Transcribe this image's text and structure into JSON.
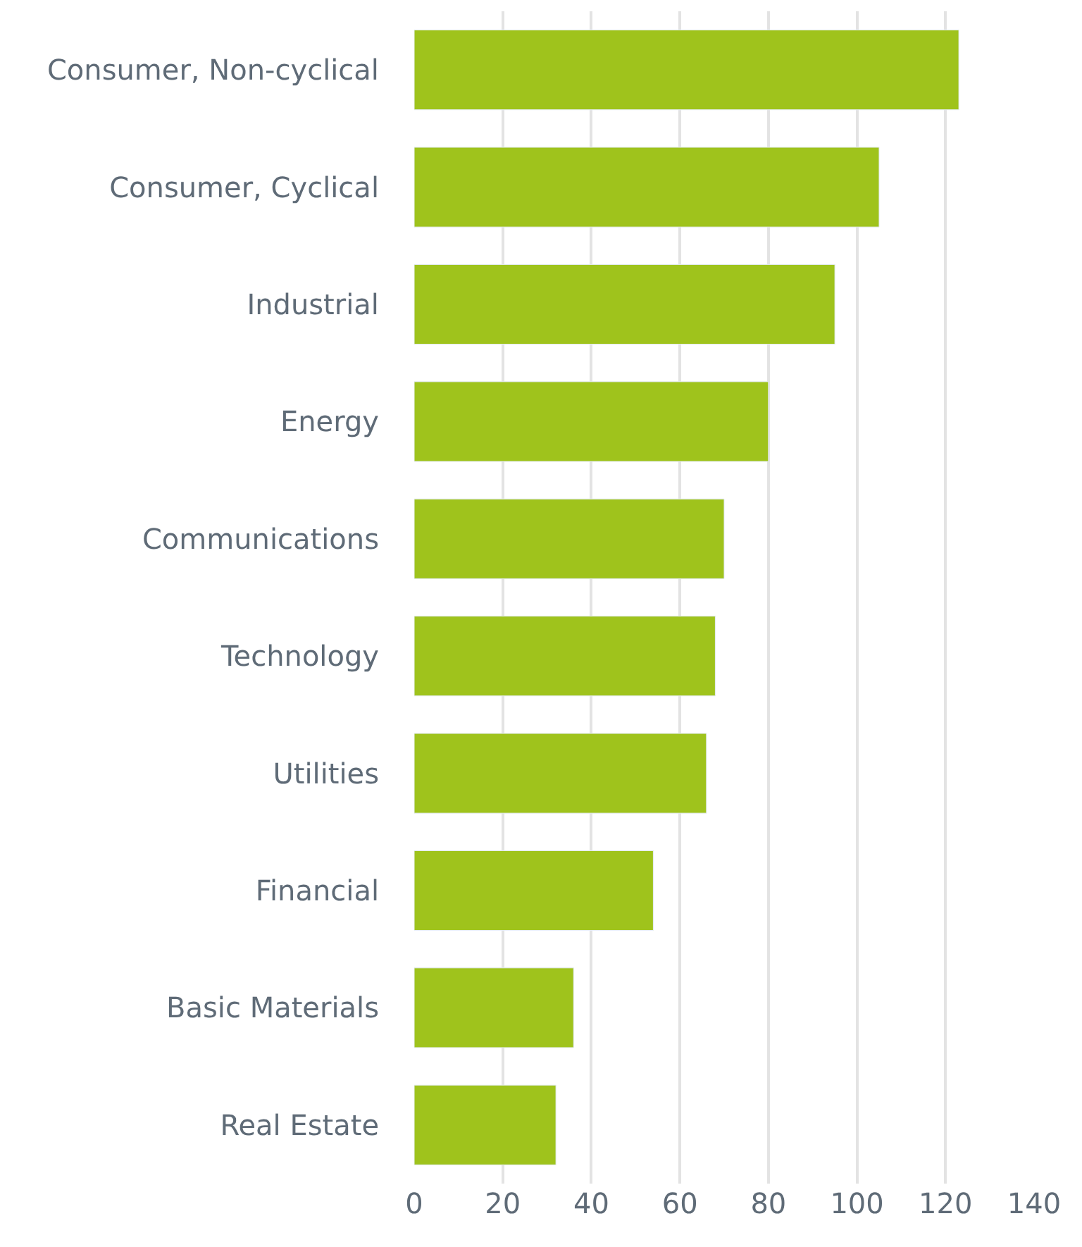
{
  "chart_data": {
    "type": "bar",
    "orientation": "horizontal",
    "categories": [
      "Consumer, Non-cyclical",
      "Consumer, Cyclical",
      "Industrial",
      "Energy",
      "Communications",
      "Technology",
      "Utilities",
      "Financial",
      "Basic Materials",
      "Real Estate"
    ],
    "values": [
      123,
      105,
      95,
      80,
      70,
      68,
      66,
      54,
      36,
      32
    ],
    "color": "#9fc31c",
    "xlim": [
      0,
      140
    ],
    "xticks": [
      0,
      20,
      40,
      60,
      80,
      100,
      120,
      140
    ],
    "grid": "x",
    "legend": false
  }
}
